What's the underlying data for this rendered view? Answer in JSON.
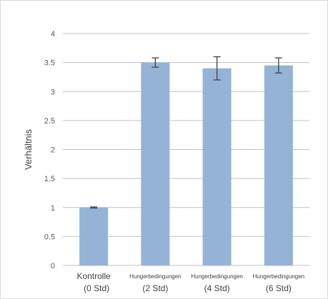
{
  "chart_data": {
    "type": "bar",
    "ylabel": "Verhältnis",
    "ylim": [
      0,
      4
    ],
    "yticks": [
      "0",
      "0.5",
      "1",
      "1.5",
      "2",
      "2.5",
      "3",
      "3.5",
      "4"
    ],
    "grid": true,
    "categories": [
      {
        "line1": "Kontrolle",
        "line2": "(0 Std)"
      },
      {
        "line1": "Hungerbedingungen",
        "line2": "(2 Std)"
      },
      {
        "line1": "Hungerbedingungen",
        "line2": "(4 Std)"
      },
      {
        "line1": "Hungerbedingungen",
        "line2": "(6 Std)"
      }
    ],
    "values": [
      1.0,
      3.5,
      3.4,
      3.45
    ],
    "errors": [
      0.01,
      0.08,
      0.2,
      0.13
    ],
    "bar_color": "#95b3d7",
    "error_color": "#404040",
    "grid_color": "#c0c0c0"
  }
}
